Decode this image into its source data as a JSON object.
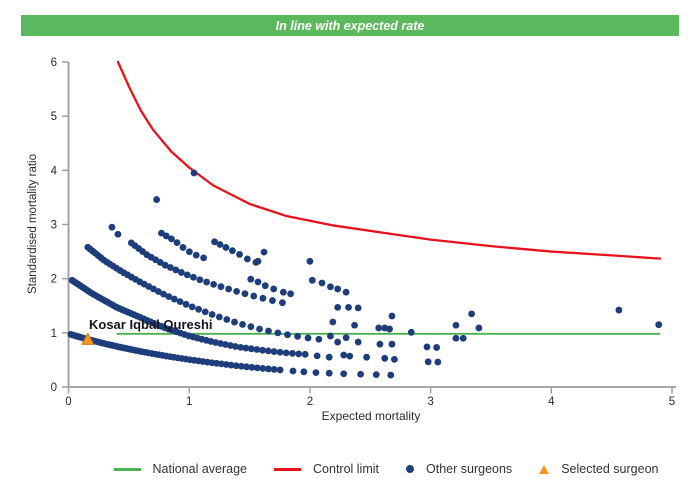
{
  "banner": {
    "text": "In line with expected rate"
  },
  "legend": {
    "items": [
      {
        "label": "National average",
        "swatch": "green-line"
      },
      {
        "label": "Control limit",
        "swatch": "red-line"
      },
      {
        "label": "Other surgeons",
        "swatch": "navy-dot"
      },
      {
        "label": "Selected surgeon",
        "swatch": "orange-triangle"
      }
    ]
  },
  "colors": {
    "banner_bg": "#5cb85c",
    "banner_text": "#ffffff",
    "national_average": "#4caf50",
    "control_limit": "#e8121d",
    "other_surgeons": "#1e3d7b",
    "selected_surgeon": "#f7941e",
    "selected_surgeon_border": "#d97b12",
    "axis": "#9b9b9b",
    "text": "#333333"
  },
  "chart_data": {
    "type": "scatter",
    "title": "In line with expected rate",
    "xlabel": "Expected mortality",
    "ylabel": "Standardised mortality ratio",
    "xlim": [
      0,
      5
    ],
    "ylim": [
      0,
      6
    ],
    "xticks": [
      0,
      1,
      2,
      3,
      4,
      5
    ],
    "yticks": [
      0,
      1,
      2,
      3,
      4,
      5,
      6
    ],
    "grid": false,
    "legend_position": "bottom",
    "national_average": {
      "label": "National average",
      "value": 1.0,
      "x_start": 0.4,
      "x_end": 4.9
    },
    "control_limit": {
      "label": "Control limit",
      "points": [
        [
          0.41,
          6.0
        ],
        [
          0.5,
          5.55
        ],
        [
          0.6,
          5.1
        ],
        [
          0.7,
          4.75
        ],
        [
          0.85,
          4.35
        ],
        [
          1.0,
          4.05
        ],
        [
          1.2,
          3.72
        ],
        [
          1.5,
          3.38
        ],
        [
          1.8,
          3.16
        ],
        [
          2.2,
          2.98
        ],
        [
          2.6,
          2.85
        ],
        [
          3.0,
          2.72
        ],
        [
          3.5,
          2.6
        ],
        [
          4.0,
          2.5
        ],
        [
          4.5,
          2.43
        ],
        [
          4.9,
          2.37
        ]
      ]
    },
    "other_surgeons": {
      "label": "Other surgeons",
      "bands": [
        {
          "name": "band-1",
          "dx0": 0.016,
          "dx1": 0.05,
          "path": [
            [
              0.02,
              0.97
            ],
            [
              0.15,
              0.885
            ],
            [
              0.3,
              0.8
            ],
            [
              0.45,
              0.725
            ],
            [
              0.6,
              0.655
            ],
            [
              0.8,
              0.575
            ],
            [
              1.0,
              0.505
            ],
            [
              1.2,
              0.445
            ],
            [
              1.4,
              0.39
            ],
            [
              1.6,
              0.345
            ],
            [
              1.78,
              0.31
            ]
          ]
        },
        {
          "name": "band-2",
          "dx0": 0.016,
          "dx1": 0.055,
          "path": [
            [
              0.03,
              1.97
            ],
            [
              0.2,
              1.72
            ],
            [
              0.4,
              1.47
            ],
            [
              0.6,
              1.28
            ],
            [
              0.8,
              1.09
            ],
            [
              1.0,
              0.94
            ],
            [
              1.2,
              0.83
            ],
            [
              1.4,
              0.74
            ],
            [
              1.6,
              0.68
            ],
            [
              1.8,
              0.63
            ],
            [
              1.98,
              0.6
            ]
          ]
        },
        {
          "name": "band-3",
          "dx0": 0.02,
          "dx1": 0.095,
          "path": [
            [
              0.16,
              2.58
            ],
            [
              0.3,
              2.33
            ],
            [
              0.45,
              2.12
            ],
            [
              0.6,
              1.93
            ],
            [
              0.8,
              1.7
            ],
            [
              1.0,
              1.5
            ],
            [
              1.2,
              1.33
            ],
            [
              1.4,
              1.18
            ],
            [
              1.6,
              1.06
            ],
            [
              1.8,
              0.97
            ],
            [
              2.0,
              0.9
            ],
            [
              2.12,
              0.87
            ]
          ]
        },
        {
          "name": "band-4",
          "dx0": 0.03,
          "dx1": 0.09,
          "path": [
            [
              0.52,
              2.66
            ],
            [
              0.65,
              2.44
            ],
            [
              0.8,
              2.25
            ],
            [
              0.95,
              2.1
            ],
            [
              1.1,
              1.97
            ],
            [
              1.25,
              1.86
            ],
            [
              1.4,
              1.76
            ],
            [
              1.55,
              1.67
            ],
            [
              1.7,
              1.59
            ],
            [
              1.85,
              1.52
            ]
          ]
        },
        {
          "name": "band-5",
          "dx0": 0.04,
          "dx1": 0.07,
          "path": [
            [
              0.77,
              2.84
            ],
            [
              0.88,
              2.7
            ],
            [
              0.98,
              2.52
            ],
            [
              1.09,
              2.4
            ],
            [
              1.18,
              2.35
            ]
          ]
        },
        {
          "name": "band-6",
          "dx0": 0.045,
          "dx1": 0.08,
          "path": [
            [
              1.21,
              2.68
            ],
            [
              1.31,
              2.57
            ],
            [
              1.4,
              2.47
            ],
            [
              1.5,
              2.34
            ],
            [
              1.58,
              2.28
            ]
          ]
        }
      ],
      "scatter": [
        [
          1.86,
          0.295
        ],
        [
          1.95,
          0.28
        ],
        [
          2.05,
          0.265
        ],
        [
          2.16,
          0.255
        ],
        [
          2.28,
          0.245
        ],
        [
          2.42,
          0.235
        ],
        [
          2.55,
          0.228
        ],
        [
          2.67,
          0.22
        ],
        [
          2.06,
          0.575
        ],
        [
          2.16,
          0.55
        ],
        [
          2.28,
          0.59
        ],
        [
          2.33,
          0.57
        ],
        [
          2.47,
          0.55
        ],
        [
          2.62,
          0.53
        ],
        [
          2.7,
          0.51
        ],
        [
          2.17,
          0.94
        ],
        [
          2.3,
          0.91
        ],
        [
          2.23,
          0.83
        ],
        [
          2.4,
          0.83
        ],
        [
          2.58,
          0.79
        ],
        [
          2.68,
          0.79
        ],
        [
          2.57,
          1.09
        ],
        [
          2.62,
          1.09
        ],
        [
          2.66,
          1.07
        ],
        [
          2.84,
          1.01
        ],
        [
          2.19,
          1.2
        ],
        [
          2.37,
          1.14
        ],
        [
          2.68,
          1.31
        ],
        [
          2.23,
          1.47
        ],
        [
          2.32,
          1.47
        ],
        [
          2.4,
          1.46
        ],
        [
          1.51,
          1.99
        ],
        [
          1.57,
          1.94
        ],
        [
          1.63,
          1.87
        ],
        [
          1.7,
          1.81
        ],
        [
          1.78,
          1.75
        ],
        [
          1.84,
          1.72
        ],
        [
          2.02,
          1.97
        ],
        [
          2.1,
          1.92
        ],
        [
          2.17,
          1.85
        ],
        [
          2.23,
          1.81
        ],
        [
          2.3,
          1.75
        ],
        [
          1.57,
          2.32
        ],
        [
          2.0,
          2.32
        ],
        [
          1.62,
          2.49
        ],
        [
          0.36,
          2.95
        ],
        [
          0.41,
          2.82
        ],
        [
          0.73,
          3.46
        ],
        [
          1.04,
          3.95
        ],
        [
          2.97,
          0.74
        ],
        [
          3.05,
          0.73
        ],
        [
          2.98,
          0.465
        ],
        [
          3.06,
          0.46
        ],
        [
          3.21,
          1.14
        ],
        [
          3.21,
          0.9
        ],
        [
          3.27,
          0.9
        ],
        [
          3.34,
          1.35
        ],
        [
          3.4,
          1.09
        ],
        [
          4.56,
          1.42
        ],
        [
          4.89,
          1.15
        ]
      ]
    },
    "selected_surgeon": {
      "label": "Kosar Iqbal Qureshi",
      "x": 0.16,
      "y": 0.88
    }
  }
}
